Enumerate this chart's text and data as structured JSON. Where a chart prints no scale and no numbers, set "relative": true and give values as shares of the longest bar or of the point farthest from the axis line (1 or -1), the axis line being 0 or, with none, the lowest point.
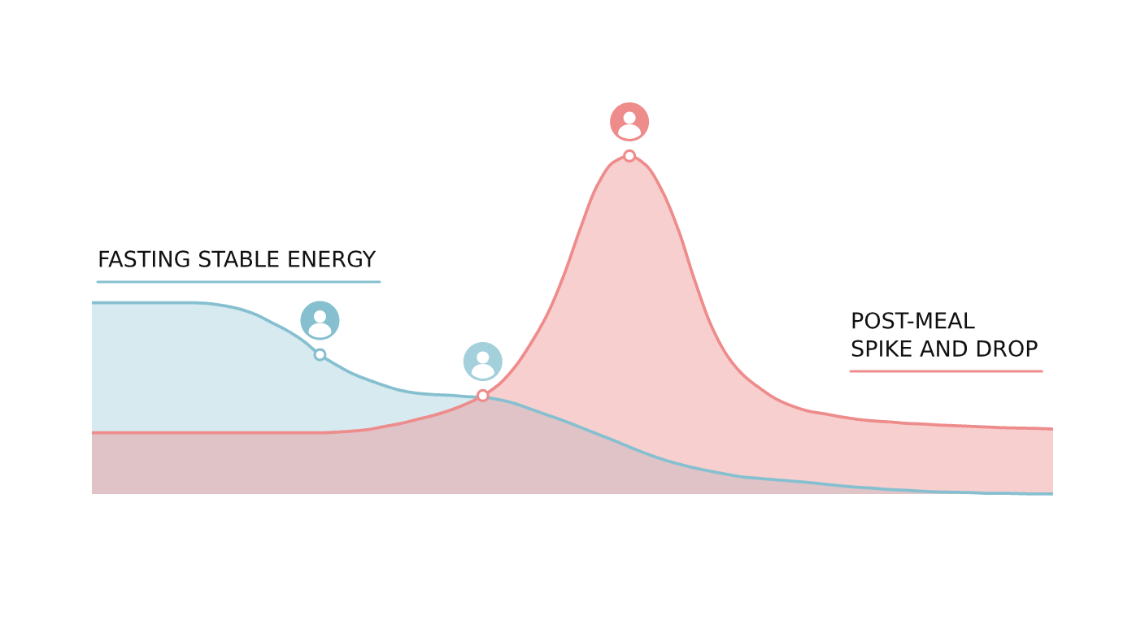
{
  "chart_data": {
    "type": "area",
    "relative": true,
    "categories": [
      null,
      null,
      null,
      null,
      null,
      null,
      null,
      null,
      null,
      null,
      null,
      null,
      null,
      null,
      null,
      null,
      null,
      null,
      null,
      null,
      null,
      null,
      null,
      null,
      null,
      null,
      null,
      null,
      null,
      null,
      null,
      null,
      null,
      null,
      null,
      null,
      null,
      null,
      null,
      null,
      null,
      null,
      null,
      null,
      null,
      null,
      null,
      null,
      null,
      null,
      null,
      null,
      null,
      null,
      null,
      null,
      null,
      null,
      null,
      null
    ],
    "series": [
      {
        "name": "FASTING STABLE ENERGY",
        "color": "#86c0d0",
        "values": [
          0.566,
          0.566,
          0.566,
          0.566,
          0.566,
          0.566,
          0.566,
          0.564,
          0.558,
          0.548,
          0.532,
          0.508,
          0.483,
          0.452,
          0.412,
          0.382,
          0.356,
          0.337,
          0.32,
          0.306,
          0.298,
          0.294,
          0.292,
          0.288,
          0.286,
          0.279,
          0.267,
          0.25,
          0.233,
          0.216,
          0.197,
          0.178,
          0.159,
          0.139,
          0.12,
          0.103,
          0.089,
          0.077,
          0.067,
          0.058,
          0.05,
          0.046,
          0.042,
          0.038,
          0.034,
          0.029,
          0.024,
          0.02,
          0.017,
          0.013,
          0.011,
          0.008,
          0.006,
          0.005,
          0.004,
          0.002,
          0.002,
          0.001,
          0,
          0
        ]
      },
      {
        "name": "POST-MEAL\nSPIKE AND DROP",
        "color": "#ee8c8c",
        "values": [
          0.181,
          0.181,
          0.181,
          0.181,
          0.181,
          0.181,
          0.181,
          0.181,
          0.181,
          0.181,
          0.181,
          0.181,
          0.181,
          0.181,
          0.181,
          0.183,
          0.186,
          0.191,
          0.2,
          0.209,
          0.221,
          0.233,
          0.248,
          0.267,
          0.291,
          0.325,
          0.378,
          0.45,
          0.536,
          0.651,
          0.788,
          0.911,
          0.981,
          1,
          0.973,
          0.897,
          0.781,
          0.632,
          0.5,
          0.409,
          0.351,
          0.313,
          0.281,
          0.26,
          0.245,
          0.237,
          0.228,
          0.221,
          0.216,
          0.213,
          0.209,
          0.207,
          0.204,
          0.202,
          0.2,
          0.198,
          0.196,
          0.195,
          0.194,
          0.192
        ]
      }
    ]
  }
}
